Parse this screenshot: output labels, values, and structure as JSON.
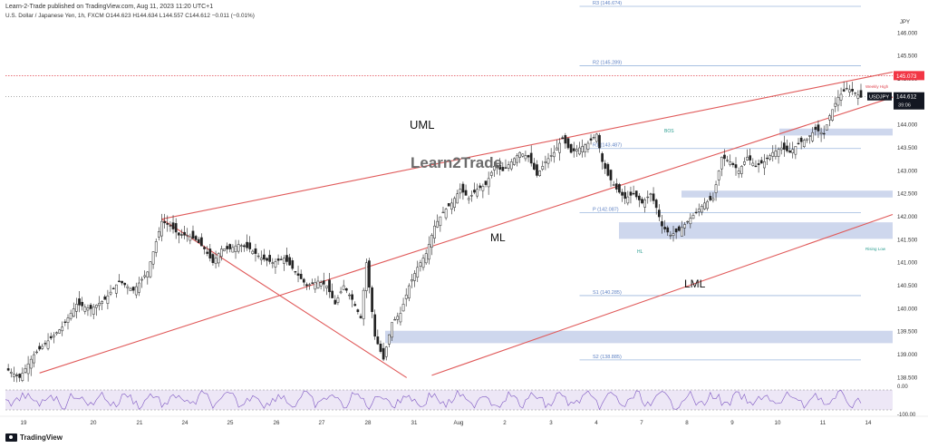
{
  "header": {
    "published": "Learn-2-Trade published on TradingView.com, Aug 11, 2023 11:20 UTC+1",
    "symbol_line": "U.S. Dollar / Japanese Yen, 1h, FXCM  O144.623  H144.634  L144.557  C144.612  −0.011 (−0.01%)"
  },
  "footer": {
    "brand": "TradingView"
  },
  "chart_data": {
    "type": "candlestick",
    "currency": "JPY",
    "x_tick_labels": [
      "19",
      "20",
      "21",
      "24",
      "25",
      "26",
      "27",
      "28",
      "31",
      "Aug",
      "2",
      "3",
      "4",
      "7",
      "8",
      "9",
      "10",
      "11",
      "14"
    ],
    "y_axis_labels": [
      "146.000",
      "145.500",
      "145.000",
      "144.500",
      "144.000",
      "143.500",
      "143.000",
      "142.500",
      "142.000",
      "141.500",
      "141.000",
      "140.500",
      "140.000",
      "139.500",
      "139.000",
      "138.500"
    ],
    "ylim": [
      138.35,
      146.6
    ],
    "last_price": {
      "label": "USDJPY",
      "value": "144.612",
      "countdown": "39:06"
    },
    "high_price_label": "145.073",
    "high_tag": "Weekly High",
    "pivot_levels": [
      {
        "label": "R3 (146.6?4)",
        "value": 146.58
      },
      {
        "label": "R2 (145.289)",
        "value": 145.289
      },
      {
        "label": "R1 (143.487)",
        "value": 143.487
      },
      {
        "label": "P (142.087)",
        "value": 142.087
      },
      {
        "label": "S1 (140.285)",
        "value": 140.285
      },
      {
        "label": "S2 (138.885)",
        "value": 138.885
      }
    ],
    "channel_labels": {
      "upper": "UML",
      "median": "ML",
      "lower": "LML"
    },
    "annotations": [
      "BOS",
      "HL",
      "Rising Low"
    ],
    "watermark": "Learn2Trade",
    "rsi": {
      "ticks": [
        "0.00",
        "-100.00"
      ]
    },
    "price_path": [
      [
        0,
        138.7
      ],
      [
        5,
        138.5
      ],
      [
        10,
        139.0
      ],
      [
        15,
        139.3
      ],
      [
        20,
        139.6
      ],
      [
        25,
        140.1
      ],
      [
        30,
        140.0
      ],
      [
        35,
        140.2
      ],
      [
        40,
        140.6
      ],
      [
        45,
        140.4
      ],
      [
        50,
        140.8
      ],
      [
        55,
        141.9
      ],
      [
        58,
        141.8
      ],
      [
        61,
        141.6
      ],
      [
        64,
        141.6
      ],
      [
        67,
        141.5
      ],
      [
        70,
        141.3
      ],
      [
        73,
        141.0
      ],
      [
        76,
        141.3
      ],
      [
        79,
        141.3
      ],
      [
        82,
        141.4
      ],
      [
        86,
        141.3
      ],
      [
        90,
        141.1
      ],
      [
        94,
        141.0
      ],
      [
        98,
        141.1
      ],
      [
        102,
        140.8
      ],
      [
        106,
        140.5
      ],
      [
        110,
        140.6
      ],
      [
        113,
        140.5
      ],
      [
        116,
        140.1
      ],
      [
        119,
        140.5
      ],
      [
        122,
        140.2
      ],
      [
        125,
        139.8
      ],
      [
        127,
        141.0
      ],
      [
        130,
        139.4
      ],
      [
        133,
        138.9
      ],
      [
        136,
        139.7
      ],
      [
        139,
        139.9
      ],
      [
        142,
        140.5
      ],
      [
        145,
        140.9
      ],
      [
        148,
        141.2
      ],
      [
        151,
        141.8
      ],
      [
        154,
        142.1
      ],
      [
        157,
        142.3
      ],
      [
        160,
        142.6
      ],
      [
        163,
        142.4
      ],
      [
        166,
        142.6
      ],
      [
        169,
        142.7
      ],
      [
        172,
        143.1
      ],
      [
        175,
        143.0
      ],
      [
        178,
        143.2
      ],
      [
        181,
        143.4
      ],
      [
        184,
        143.3
      ],
      [
        187,
        142.9
      ],
      [
        190,
        143.2
      ],
      [
        193,
        143.4
      ],
      [
        196,
        143.7
      ],
      [
        199,
        143.4
      ],
      [
        202,
        143.5
      ],
      [
        205,
        143.6
      ],
      [
        208,
        143.8
      ],
      [
        210,
        143.2
      ],
      [
        212,
        142.9
      ],
      [
        215,
        142.6
      ],
      [
        218,
        142.4
      ],
      [
        221,
        142.5
      ],
      [
        224,
        142.3
      ],
      [
        227,
        142.5
      ],
      [
        229,
        142.2
      ],
      [
        231,
        141.8
      ],
      [
        234,
        141.6
      ],
      [
        237,
        141.7
      ],
      [
        240,
        141.9
      ],
      [
        243,
        142.1
      ],
      [
        246,
        142.3
      ],
      [
        249,
        142.4
      ],
      [
        252,
        143.3
      ],
      [
        255,
        143.2
      ],
      [
        258,
        143.0
      ],
      [
        261,
        143.3
      ],
      [
        264,
        143.1
      ],
      [
        267,
        143.2
      ],
      [
        270,
        143.4
      ],
      [
        273,
        143.5
      ],
      [
        276,
        143.4
      ],
      [
        279,
        143.6
      ],
      [
        282,
        143.7
      ],
      [
        285,
        143.9
      ],
      [
        288,
        143.8
      ],
      [
        290,
        144.2
      ],
      [
        293,
        144.6
      ],
      [
        296,
        144.8
      ],
      [
        299,
        144.7
      ],
      [
        301,
        144.6
      ]
    ]
  }
}
